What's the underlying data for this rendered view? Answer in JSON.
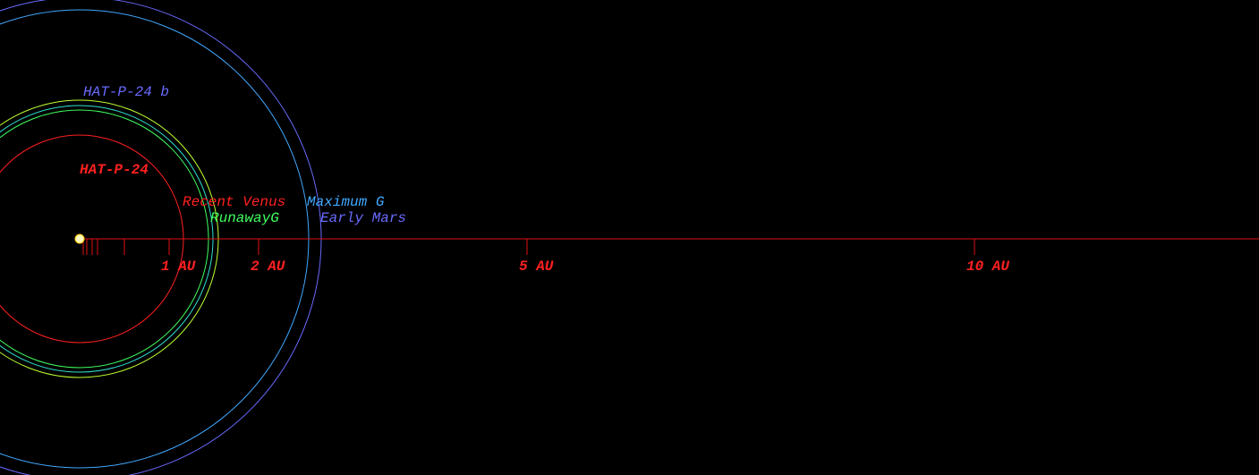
{
  "star_label": "HAT-P-24",
  "planet_label": "HAT-P-24 b",
  "zones": [
    {
      "name": "Recent Venus",
      "color": "#ff2020",
      "radius_au": 1.16
    },
    {
      "name": "RunawayG",
      "color": "#40ff60",
      "radius_au": 1.44
    },
    {
      "name": "Maximum G",
      "color": "#40a8ff",
      "radius_au": 2.56
    },
    {
      "name": "Early Mars",
      "color": "#6a6aff",
      "radius_au": 2.7
    }
  ],
  "orbits": [
    {
      "color": "#30e0d0",
      "radius_au": 1.49
    },
    {
      "color": "#c0ff30",
      "radius_au": 1.55
    }
  ],
  "axis_ticks": [
    {
      "value": 1,
      "label": "1 AU"
    },
    {
      "value": 2,
      "label": "2 AU"
    },
    {
      "value": 5,
      "label": "5 AU"
    },
    {
      "value": 10,
      "label": "10 AU"
    }
  ],
  "minor_ticks": [
    0.04,
    0.08,
    0.14,
    0.2,
    0.5
  ]
}
